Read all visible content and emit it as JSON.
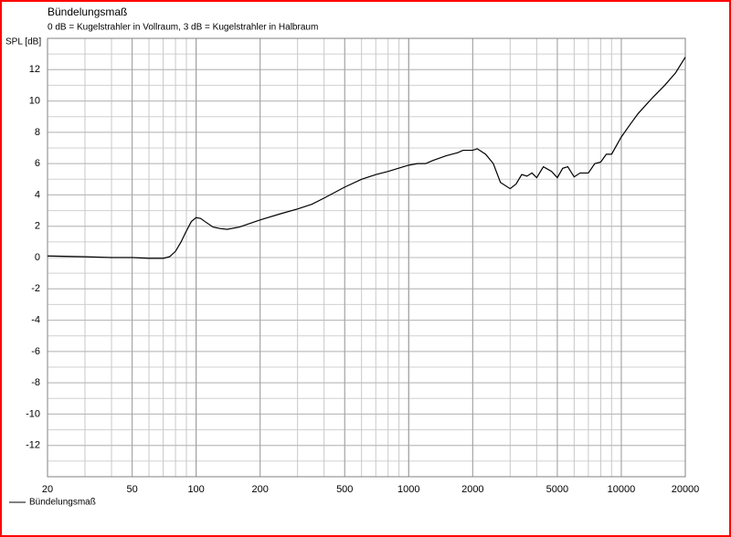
{
  "chart_data": {
    "type": "line",
    "title": "Bündelungsmaß",
    "subtitle": "0 dB = Kugelstrahler in Vollraum, 3 dB = Kugelstrahler in Halbraum",
    "y_label": "SPL [dB]",
    "x_scale": "log",
    "grid": true,
    "legend": "bottom-left",
    "xlim": [
      20,
      20000
    ],
    "xticks": [
      20,
      50,
      100,
      200,
      500,
      1000,
      2000,
      5000,
      10000,
      20000
    ],
    "ylim": [
      -14,
      14
    ],
    "yticks": [
      12,
      10,
      8,
      6,
      4,
      2,
      0,
      -2,
      -4,
      -6,
      -8,
      -10,
      -12
    ],
    "x": [
      20,
      30,
      40,
      50,
      60,
      70,
      75,
      80,
      85,
      90,
      95,
      100,
      105,
      110,
      120,
      130,
      140,
      160,
      200,
      250,
      300,
      350,
      400,
      500,
      600,
      700,
      800,
      1000,
      1100,
      1200,
      1300,
      1500,
      1700,
      1800,
      2000,
      2100,
      2300,
      2500,
      2700,
      3000,
      3200,
      3400,
      3600,
      3800,
      4000,
      4300,
      4700,
      5000,
      5300,
      5600,
      6000,
      6400,
      7000,
      7500,
      8000,
      8500,
      9000,
      10000,
      11000,
      12000,
      14000,
      16000,
      18000,
      20000
    ],
    "series": [
      {
        "name": "Bündelungsmaß",
        "color": "#000000",
        "values": [
          0.1,
          0.05,
          0.0,
          0.0,
          -0.05,
          -0.05,
          0.05,
          0.4,
          1.0,
          1.7,
          2.3,
          2.55,
          2.5,
          2.3,
          1.95,
          1.85,
          1.8,
          1.95,
          2.4,
          2.8,
          3.1,
          3.4,
          3.8,
          4.5,
          5.0,
          5.3,
          5.5,
          5.9,
          6.0,
          6.0,
          6.2,
          6.5,
          6.7,
          6.85,
          6.85,
          6.95,
          6.6,
          6.0,
          4.8,
          4.4,
          4.7,
          5.3,
          5.2,
          5.4,
          5.1,
          5.8,
          5.5,
          5.1,
          5.7,
          5.8,
          5.15,
          5.4,
          5.4,
          6.0,
          6.1,
          6.6,
          6.6,
          7.7,
          8.5,
          9.2,
          10.2,
          11.0,
          11.8,
          12.8
        ]
      }
    ]
  }
}
